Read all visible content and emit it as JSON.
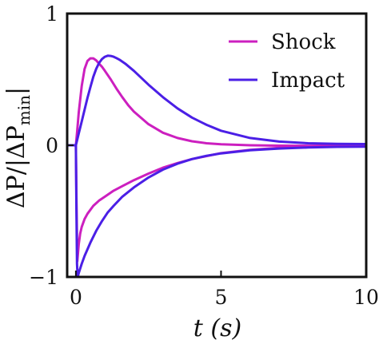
{
  "chart_data": {
    "type": "line",
    "xlabel": "t (s)",
    "ylabel": "ΔP/|ΔP_min|",
    "xlim": [
      -0.3,
      10
    ],
    "ylim": [
      -1,
      1
    ],
    "xticks": [
      "0",
      "5",
      "10"
    ],
    "yticks": [
      "−1",
      "0",
      "1"
    ],
    "grid": false,
    "legend_position": "top-right",
    "colors": {
      "shock": "#cc1fbf",
      "impact": "#4b1fe6"
    },
    "series": [
      {
        "name": "Shock",
        "branch": "positive",
        "x": [
          -0.3,
          0.0,
          0.05,
          0.1,
          0.2,
          0.3,
          0.4,
          0.5,
          0.6,
          0.7,
          0.8,
          0.9,
          1.0,
          1.2,
          1.4,
          1.6,
          1.8,
          2.0,
          2.5,
          3.0,
          3.5,
          4.0,
          4.5,
          5.0,
          6.0,
          7.0,
          8.0,
          9.0,
          10.0
        ],
        "y": [
          0.0,
          0.0,
          0.12,
          0.25,
          0.45,
          0.58,
          0.64,
          0.66,
          0.66,
          0.645,
          0.62,
          0.595,
          0.565,
          0.5,
          0.43,
          0.365,
          0.305,
          0.255,
          0.16,
          0.095,
          0.055,
          0.03,
          0.015,
          0.007,
          0.0,
          -0.003,
          -0.004,
          -0.002,
          0.0
        ]
      },
      {
        "name": "Shock",
        "branch": "negative",
        "x": [
          -0.3,
          0.0,
          0.02,
          0.05,
          0.1,
          0.15,
          0.2,
          0.3,
          0.4,
          0.6,
          0.8,
          1.0,
          1.3,
          1.6,
          2.0,
          2.5,
          3.0,
          3.5,
          4.0,
          5.0,
          6.0,
          7.0,
          8.0,
          9.0,
          10.0
        ],
        "y": [
          0.0,
          0.0,
          -0.4,
          -0.88,
          -0.75,
          -0.67,
          -0.62,
          -0.56,
          -0.52,
          -0.46,
          -0.42,
          -0.39,
          -0.345,
          -0.31,
          -0.265,
          -0.215,
          -0.17,
          -0.135,
          -0.105,
          -0.06,
          -0.035,
          -0.02,
          -0.012,
          -0.006,
          -0.003
        ]
      },
      {
        "name": "Impact",
        "branch": "positive",
        "x": [
          -0.3,
          0.0,
          0.1,
          0.2,
          0.3,
          0.4,
          0.5,
          0.6,
          0.7,
          0.8,
          0.9,
          1.0,
          1.1,
          1.2,
          1.3,
          1.4,
          1.5,
          1.7,
          2.0,
          2.5,
          3.0,
          3.5,
          4.0,
          4.5,
          5.0,
          6.0,
          7.0,
          8.0,
          9.0,
          10.0
        ],
        "y": [
          0.0,
          0.0,
          0.09,
          0.18,
          0.27,
          0.36,
          0.44,
          0.52,
          0.58,
          0.625,
          0.655,
          0.672,
          0.68,
          0.678,
          0.672,
          0.662,
          0.65,
          0.62,
          0.565,
          0.46,
          0.365,
          0.28,
          0.21,
          0.155,
          0.11,
          0.055,
          0.028,
          0.015,
          0.01,
          0.009
        ]
      },
      {
        "name": "Impact",
        "branch": "negative",
        "x": [
          -0.3,
          0.0,
          0.02,
          0.04,
          0.06,
          0.1,
          0.2,
          0.3,
          0.5,
          0.7,
          0.9,
          1.1,
          1.3,
          1.6,
          2.0,
          2.5,
          3.0,
          3.5,
          4.0,
          4.5,
          5.0,
          6.0,
          7.0,
          8.0,
          9.0,
          10.0
        ],
        "y": [
          0.0,
          0.0,
          -0.5,
          -0.9,
          -1.0,
          -0.97,
          -0.9,
          -0.84,
          -0.74,
          -0.65,
          -0.575,
          -0.51,
          -0.46,
          -0.39,
          -0.32,
          -0.245,
          -0.185,
          -0.14,
          -0.105,
          -0.08,
          -0.062,
          -0.038,
          -0.025,
          -0.017,
          -0.012,
          -0.01
        ]
      }
    ],
    "legend": [
      {
        "label": "Shock",
        "color": "#cc1fbf"
      },
      {
        "label": "Impact",
        "color": "#4b1fe6"
      }
    ]
  }
}
